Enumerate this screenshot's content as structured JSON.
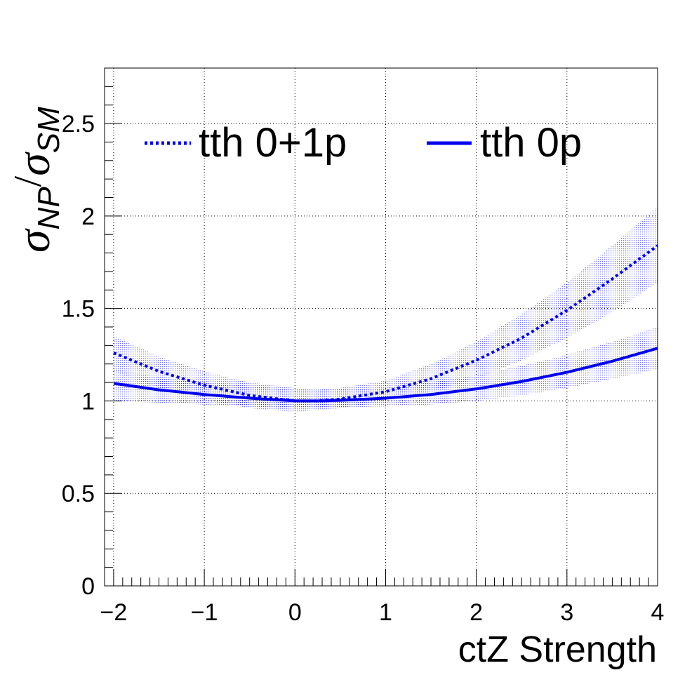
{
  "chart_data": {
    "type": "line",
    "xlabel": "ctZ Strength",
    "ylabel": {
      "sigma": "σ",
      "np": "NP",
      "slash": "/",
      "sm": "SM"
    },
    "xlim": [
      -2.1,
      4.0
    ],
    "ylim": [
      0,
      2.8
    ],
    "x_ticks": [
      -2,
      -1,
      0,
      1,
      2,
      3,
      4
    ],
    "x_tick_labels": [
      "−2",
      "−1",
      "0",
      "1",
      "2",
      "3",
      "4"
    ],
    "y_ticks": [
      0,
      0.5,
      1,
      1.5,
      2,
      2.5
    ],
    "y_tick_labels": [
      "0",
      "0.5",
      "1",
      "1.5",
      "2",
      "2.5"
    ],
    "grid": true,
    "legend_placement": "top",
    "series": [
      {
        "name": "tth 0+1p",
        "style": "dotted",
        "color": "#0000ee",
        "x": [
          -2.0,
          -1.5,
          -1.0,
          -0.5,
          0.0,
          0.25,
          0.5,
          1.0,
          1.5,
          2.0,
          2.5,
          3.0,
          3.5,
          4.0
        ],
        "values": [
          1.26,
          1.16,
          1.085,
          1.03,
          1.0,
          1.0,
          1.01,
          1.05,
          1.12,
          1.22,
          1.34,
          1.49,
          1.66,
          1.84
        ],
        "band_low": [
          1.16,
          1.07,
          1.01,
          0.96,
          0.94,
          0.95,
          0.96,
          1.0,
          1.05,
          1.12,
          1.22,
          1.34,
          1.48,
          1.64
        ],
        "band_high": [
          1.35,
          1.24,
          1.16,
          1.1,
          1.07,
          1.06,
          1.07,
          1.11,
          1.2,
          1.32,
          1.47,
          1.64,
          1.84,
          2.05
        ]
      },
      {
        "name": "tth 0p",
        "style": "solid",
        "color": "#0000ee",
        "x": [
          -2.0,
          -1.5,
          -1.0,
          -0.5,
          0.0,
          0.25,
          0.5,
          1.0,
          1.5,
          2.0,
          2.5,
          3.0,
          3.5,
          4.0
        ],
        "values": [
          1.095,
          1.06,
          1.035,
          1.015,
          1.0,
          1.0,
          1.003,
          1.015,
          1.035,
          1.065,
          1.105,
          1.155,
          1.215,
          1.285
        ],
        "band_low": [
          1.0,
          0.99,
          0.98,
          0.97,
          0.96,
          0.96,
          0.965,
          0.97,
          0.98,
          1.0,
          1.03,
          1.07,
          1.12,
          1.17
        ],
        "band_high": [
          1.17,
          1.13,
          1.1,
          1.08,
          1.06,
          1.06,
          1.065,
          1.07,
          1.1,
          1.14,
          1.19,
          1.25,
          1.32,
          1.4
        ]
      }
    ]
  }
}
